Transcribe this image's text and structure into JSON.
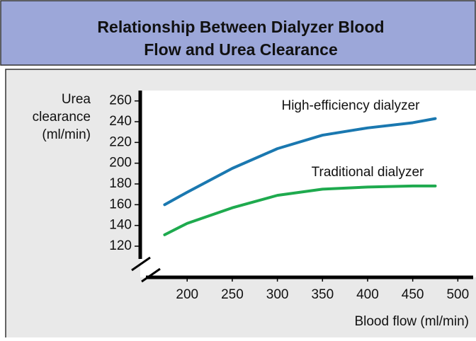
{
  "chart_data": {
    "type": "line",
    "title": [
      "Relationship Between Dialyzer Blood",
      "Flow and Urea Clearance"
    ],
    "y_label": [
      "Urea",
      "clearance",
      "(ml/min)"
    ],
    "x_label": "Blood flow (ml/min)",
    "x": [
      175,
      200,
      250,
      300,
      350,
      400,
      450,
      475
    ],
    "series": [
      {
        "name": "High-efficiency dialyzer",
        "color": "#1a78b0",
        "values": [
          160,
          172,
          195,
          214,
          227,
          234,
          239,
          243
        ]
      },
      {
        "name": "Traditional dialyzer",
        "color": "#1eaa4e",
        "values": [
          131,
          142,
          157,
          169,
          175,
          177,
          178,
          178
        ]
      }
    ],
    "xlim": [
      148,
      517
    ],
    "ylim": [
      90,
      270
    ],
    "xticks": [
      200,
      250,
      300,
      350,
      400,
      450,
      500
    ],
    "yticks": [
      120,
      140,
      160,
      180,
      200,
      220,
      240,
      260
    ],
    "grid": false
  }
}
